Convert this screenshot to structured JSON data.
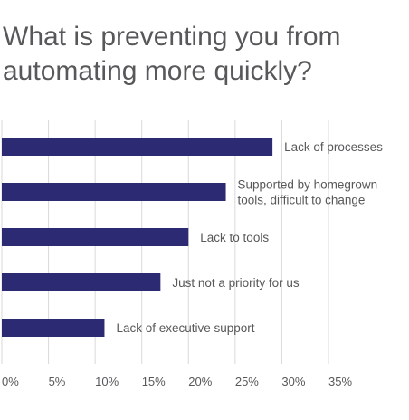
{
  "chart_data": {
    "type": "bar",
    "orientation": "horizontal",
    "title": "What is preventing you from automating more quickly?",
    "categories": [
      "Lack of processes",
      "Supported by homegrown tools, difficult to change",
      "Lack to tools",
      "Just not a priority for us",
      "Lack of executive support"
    ],
    "label_lines": [
      [
        "Lack of processes"
      ],
      [
        "Supported by homegrown",
        "tools, difficult to change"
      ],
      [
        "Lack to tools"
      ],
      [
        "Just not a priority for us"
      ],
      [
        "Lack of executive support"
      ]
    ],
    "values": [
      29,
      24,
      20,
      17,
      11
    ],
    "xlim": [
      0,
      35
    ],
    "xticks": [
      0,
      5,
      10,
      15,
      20,
      25,
      30,
      35
    ],
    "xtick_labels": [
      "0%",
      "5%",
      "10%",
      "15%",
      "20%",
      "25%",
      "30%",
      "35%"
    ],
    "grid": true,
    "colors": {
      "bar": "#2b2a72",
      "grid": "#d9d9d9",
      "text": "#58585a"
    }
  }
}
